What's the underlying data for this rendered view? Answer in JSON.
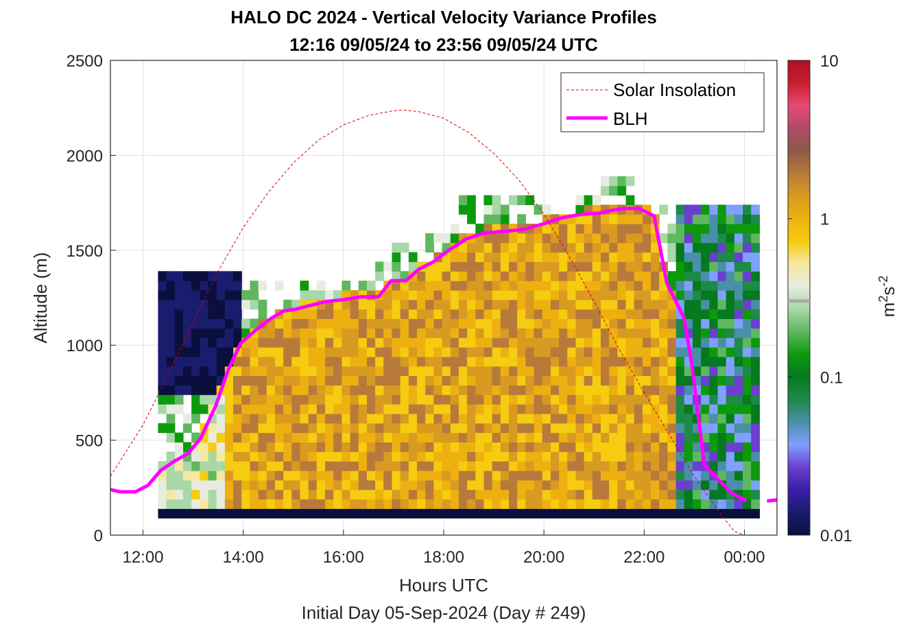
{
  "chart_data": {
    "type": "heatmap",
    "title": "HALO DC 2024 - Vertical Velocity Variance Profiles",
    "subtitle": "12:16 09/05/24 to 23:56 09/05/24  UTC",
    "xlabel": "Hours UTC",
    "xlabel2": "Initial Day 05-Sep-2024 (Day # 249)",
    "ylabel": "Altitude (m)",
    "xlim": [
      11.35,
      24.65
    ],
    "ylim": [
      0,
      2500
    ],
    "x_ticks": [
      12,
      14,
      16,
      18,
      20,
      22,
      24
    ],
    "x_tick_labels": [
      "12:00",
      "14:00",
      "16:00",
      "18:00",
      "20:00",
      "22:00",
      "00:00"
    ],
    "y_ticks": [
      0,
      500,
      1000,
      1500,
      2000,
      2500
    ],
    "y_tick_labels": [
      "0",
      "500",
      "1000",
      "1500",
      "2000",
      "2500"
    ],
    "grid": true,
    "colorbar": {
      "label": "m²s⁻²",
      "scale": "log",
      "range": [
        0.01,
        10
      ],
      "ticks": [
        0.01,
        0.1,
        1,
        10
      ],
      "tick_labels": [
        "0.01",
        "0.1",
        "1",
        "10"
      ],
      "colors": [
        "#0a0f3c",
        "#1a1c6e",
        "#3a1ea8",
        "#6a3fd0",
        "#7fa0ff",
        "#4a8fa8",
        "#1e8a4a",
        "#057a1e",
        "#0c9a0c",
        "#5fb85f",
        "#a8d8a8",
        "#e8ece0",
        "#f5e8a0",
        "#f5cc10",
        "#eeb010",
        "#d89a20",
        "#b87a3a",
        "#8c5a48",
        "#b04a6a",
        "#e84a78",
        "#c81d2a",
        "#b0102a"
      ]
    },
    "legend": {
      "placement": "top-right",
      "entries": [
        "Solar Insolation",
        "BLH"
      ]
    },
    "series": [
      {
        "name": "BLH",
        "color": "#ff00ff",
        "x": [
          11.35,
          11.55,
          11.85,
          12.1,
          12.35,
          12.6,
          12.9,
          13.15,
          13.45,
          13.7,
          13.95,
          14.25,
          14.55,
          14.8,
          15.05,
          15.35,
          15.65,
          16.0,
          16.35,
          16.7,
          16.95,
          17.25,
          17.5,
          17.8,
          18.1,
          18.45,
          18.8,
          19.2,
          19.6,
          20.0,
          20.35,
          20.75,
          21.1,
          21.35,
          21.6,
          21.9,
          22.2,
          22.45,
          22.8,
          22.95,
          23.2,
          23.45,
          23.75,
          24.05
        ],
        "y": [
          240,
          228,
          228,
          262,
          340,
          385,
          430,
          510,
          680,
          870,
          1010,
          1080,
          1140,
          1180,
          1190,
          1210,
          1230,
          1240,
          1255,
          1255,
          1340,
          1340,
          1400,
          1440,
          1500,
          1560,
          1590,
          1600,
          1610,
          1640,
          1670,
          1690,
          1695,
          1710,
          1720,
          1720,
          1680,
          1330,
          1140,
          900,
          370,
          300,
          220,
          180
        ]
      },
      {
        "name": "BLH",
        "color": "#ff00ff",
        "x": [
          24.45,
          24.65
        ],
        "y": [
          180,
          185
        ]
      },
      {
        "name": "Solar Insolation",
        "color": "#dd0000",
        "dashed": true,
        "x": [
          11.35,
          12.0,
          12.5,
          13.0,
          13.5,
          14.0,
          14.5,
          15.0,
          15.5,
          16.0,
          16.5,
          17.0,
          17.2,
          17.5,
          18.0,
          18.5,
          19.0,
          19.5,
          20.0,
          20.5,
          21.0,
          21.5,
          22.0,
          22.5,
          23.0,
          23.5,
          23.8,
          24.0,
          24.65
        ],
        "y": [
          310,
          580,
          845,
          1120,
          1390,
          1620,
          1805,
          1960,
          2080,
          2160,
          2210,
          2235,
          2238,
          2230,
          2195,
          2120,
          2010,
          1870,
          1690,
          1470,
          1230,
          980,
          750,
          530,
          310,
          120,
          20,
          0,
          0
        ]
      }
    ],
    "heatmap_note": "vertical velocity variance, log color scale; lowest bin (~80–110 m) near 0.01"
  }
}
